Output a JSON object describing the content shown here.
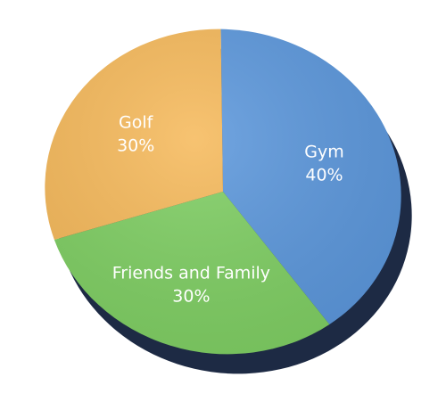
{
  "chart_data": {
    "type": "pie",
    "title": "",
    "slices": [
      {
        "label": "Gym",
        "value": 40,
        "percent_label": "40%",
        "color": "#5b97dc"
      },
      {
        "label": "Friends and Family",
        "value": 30,
        "percent_label": "30%",
        "color": "#7fcf63"
      },
      {
        "label": "Golf",
        "value": 30,
        "percent_label": "30%",
        "color": "#f6b95a"
      }
    ],
    "legend": "none",
    "style": "3d-tilted"
  }
}
